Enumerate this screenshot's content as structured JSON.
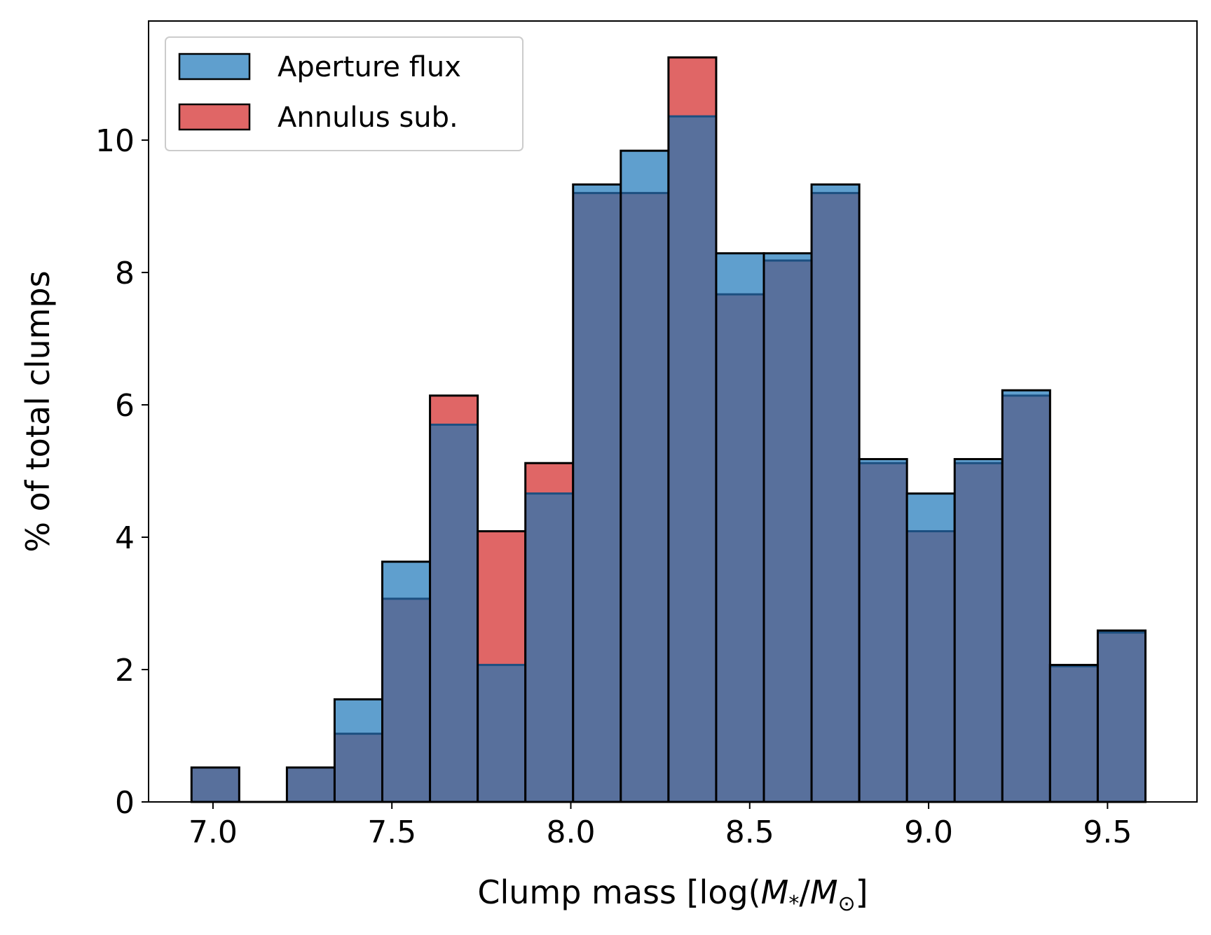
{
  "chart_data": {
    "type": "bar",
    "title": "",
    "xlabel": "Clump mass [log(",
    "xlabel_var1": "M",
    "xlabel_sub1": "*",
    "xlabel_sep": "/",
    "xlabel_var2": "M",
    "xlabel_sub2": "⊙",
    "xlabel_end": "]",
    "ylabel": "% of total clumps",
    "xlim": [
      6.82,
      9.75
    ],
    "ylim": [
      0,
      11.8
    ],
    "xticks": [
      7.0,
      7.5,
      8.0,
      8.5,
      9.0,
      9.5
    ],
    "xtick_labels": [
      "7.0",
      "7.5",
      "8.0",
      "8.5",
      "9.0",
      "9.5"
    ],
    "yticks": [
      0,
      2,
      4,
      6,
      8,
      10
    ],
    "ytick_labels": [
      "0",
      "2",
      "4",
      "6",
      "8",
      "10"
    ],
    "bin_start": 6.94,
    "bin_width": 0.1333,
    "overlap_color": "#58709c",
    "series": [
      {
        "name": "Aperture flux",
        "color": "#5f9fce",
        "values": [
          0.52,
          0,
          0.52,
          1.55,
          3.63,
          5.7,
          2.07,
          4.66,
          9.33,
          9.84,
          10.36,
          8.29,
          8.29,
          9.33,
          5.18,
          4.66,
          5.18,
          6.22,
          2.07,
          2.59
        ]
      },
      {
        "name": "Annulus sub.",
        "color": "#e06666",
        "values": [
          0.52,
          0,
          0.52,
          1.03,
          3.07,
          6.14,
          4.09,
          5.12,
          9.2,
          9.2,
          11.25,
          7.67,
          8.18,
          9.2,
          5.12,
          4.09,
          5.12,
          6.14,
          2.05,
          2.56
        ]
      }
    ],
    "legend": {
      "position": "top-left",
      "entries": [
        "Aperture flux",
        "Annulus sub."
      ]
    }
  }
}
